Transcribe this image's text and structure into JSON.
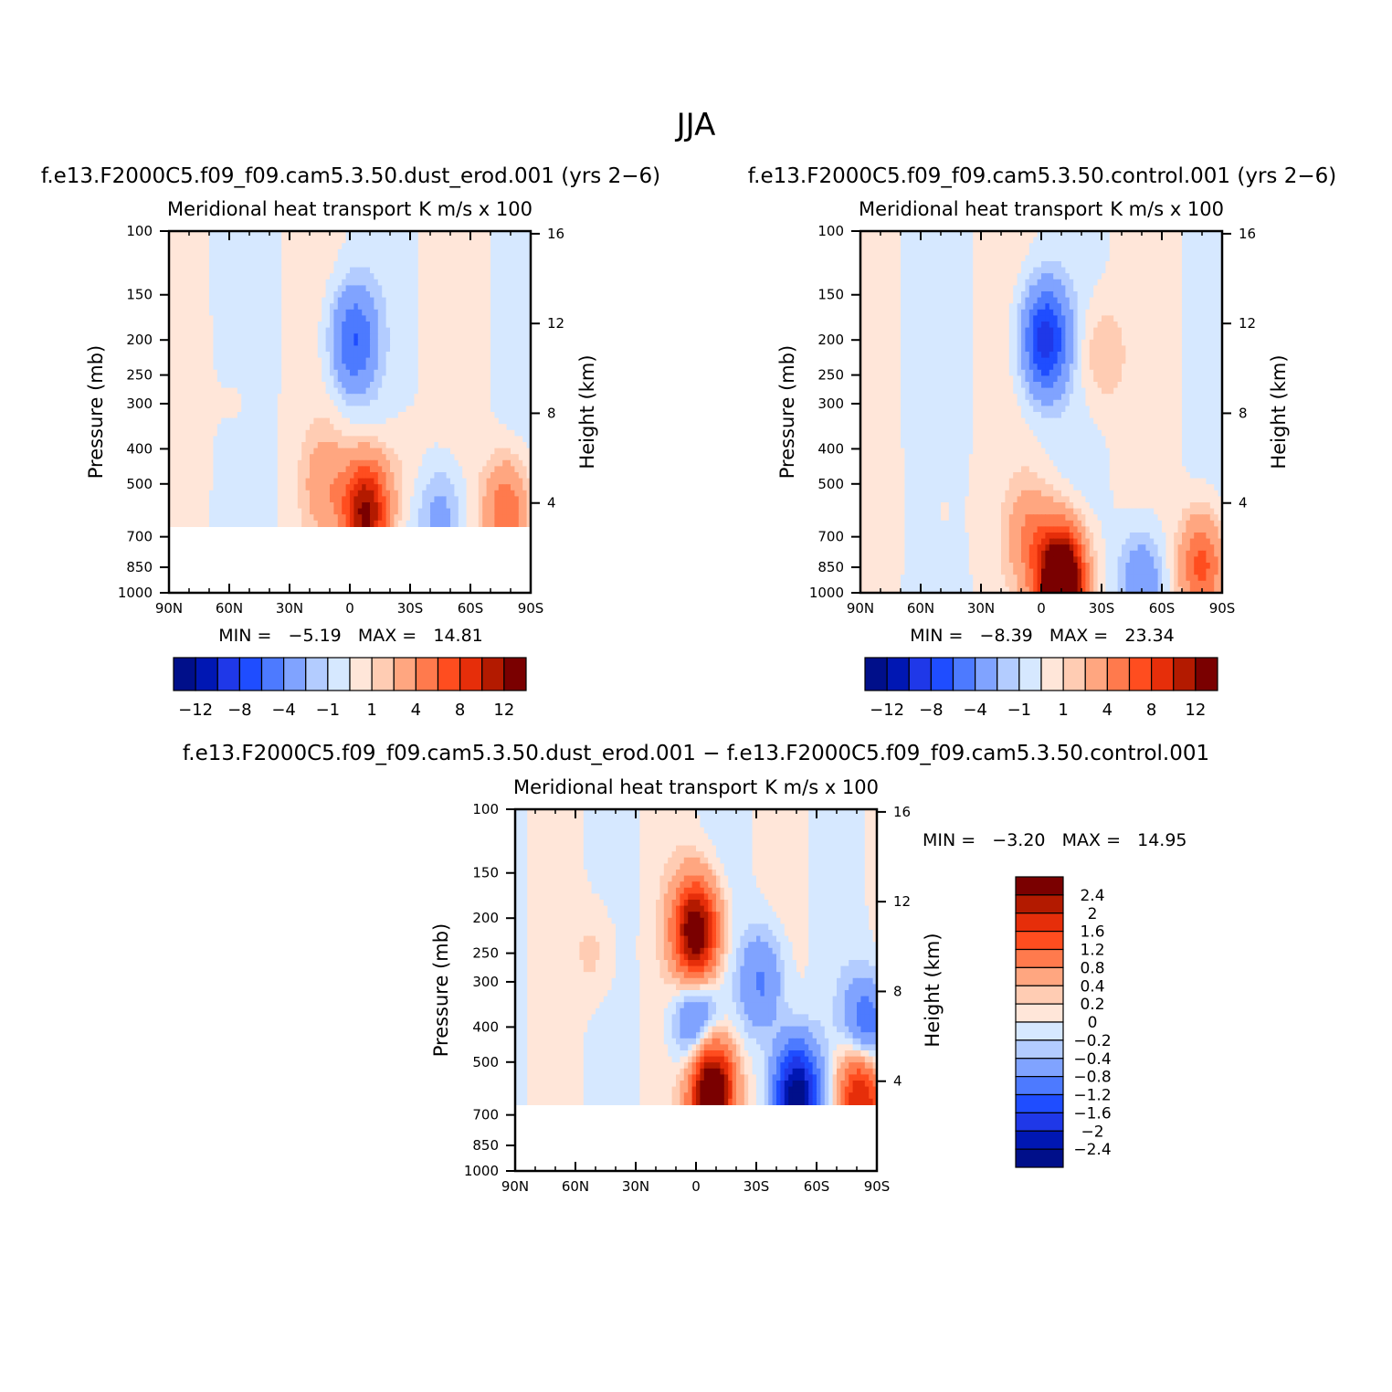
{
  "title": "JJA",
  "colors": {
    "levels_main": [
      "#000f8a",
      "#0017b3",
      "#1f38e8",
      "#1f4dff",
      "#4d7aff",
      "#80a3ff",
      "#b3ccff",
      "#d6e8ff",
      "#ffe6d9",
      "#ffccb3",
      "#ffa680",
      "#ff7a4d",
      "#ff4d1f",
      "#e62e0a",
      "#b31a00",
      "#7a0000"
    ],
    "levels_diff": [
      "#000f8a",
      "#0017b3",
      "#1f38e8",
      "#1f4dff",
      "#4d7aff",
      "#80a3ff",
      "#b3ccff",
      "#d6e8ff",
      "#ffe6d9",
      "#ffccb3",
      "#ffa680",
      "#ff7a4d",
      "#ff4d1f",
      "#e62e0a",
      "#b31a00",
      "#7a0000"
    ]
  },
  "chart_data": [
    {
      "id": "dust",
      "type": "contour",
      "title": "f.e13.F2000C5.f09_f09.cam5.3.50.dust_erod.001 (yrs 2−6)",
      "subtitle_left": "Meridional heat transport",
      "subtitle_right": "K m/s x 100",
      "ylabel": "Pressure (mb)",
      "ylabel_right": "Height (km)",
      "x_ticks": [
        "90N",
        "60N",
        "30N",
        "0",
        "30S",
        "60S",
        "90S"
      ],
      "y_ticks": [
        "100",
        "150",
        "200",
        "250",
        "300",
        "400",
        "500",
        "700",
        "850",
        "1000"
      ],
      "y_right_ticks": [
        "16",
        "12",
        "8",
        "4"
      ],
      "stats": "MIN =   −5.19   MAX =   14.81",
      "data_bottom_mb": 650,
      "features": [
        {
          "lat": -2,
          "p": 200,
          "v": -6
        },
        {
          "lat": -8,
          "p": 600,
          "v": 13
        },
        {
          "lat": 12,
          "p": 500,
          "v": 3
        },
        {
          "lat": -25,
          "p": 450,
          "v": 1
        },
        {
          "lat": -45,
          "p": 620,
          "v": -3
        },
        {
          "lat": -78,
          "p": 600,
          "v": 6
        },
        {
          "lat": 55,
          "p": 300,
          "v": 0.5
        }
      ],
      "colorbar": {
        "labels": [
          "−12",
          "−8",
          "−4",
          "−1",
          "1",
          "4",
          "8",
          "12"
        ]
      }
    },
    {
      "id": "control",
      "type": "contour",
      "title": "f.e13.F2000C5.f09_f09.cam5.3.50.control.001 (yrs 2−6)",
      "subtitle_left": "Meridional heat transport",
      "subtitle_right": "K m/s x 100",
      "ylabel": "Pressure (mb)",
      "ylabel_right": "Height (km)",
      "x_ticks": [
        "90N",
        "60N",
        "30N",
        "0",
        "30S",
        "60S",
        "90S"
      ],
      "y_ticks": [
        "100",
        "150",
        "200",
        "250",
        "300",
        "400",
        "500",
        "700",
        "850",
        "1000"
      ],
      "y_right_ticks": [
        "16",
        "12",
        "8",
        "4"
      ],
      "stats": "MIN =   −8.39   MAX =   23.34",
      "data_bottom_mb": 1000,
      "features": [
        {
          "lat": -2,
          "p": 200,
          "v": -9
        },
        {
          "lat": -10,
          "p": 950,
          "v": 22
        },
        {
          "lat": 5,
          "p": 700,
          "v": 4
        },
        {
          "lat": -30,
          "p": 220,
          "v": 2
        },
        {
          "lat": -50,
          "p": 930,
          "v": -4
        },
        {
          "lat": -80,
          "p": 850,
          "v": 7
        },
        {
          "lat": 50,
          "p": 600,
          "v": 0.5
        }
      ],
      "colorbar": {
        "labels": [
          "−12",
          "−8",
          "−4",
          "−1",
          "1",
          "4",
          "8",
          "12"
        ]
      }
    },
    {
      "id": "diff",
      "type": "contour",
      "title": "f.e13.F2000C5.f09_f09.cam5.3.50.dust_erod.001 − f.e13.F2000C5.f09_f09.cam5.3.50.control.001",
      "subtitle_left": "Meridional heat transport",
      "subtitle_right": "K m/s x 100",
      "ylabel": "Pressure (mb)",
      "ylabel_right": "Height (km)",
      "x_ticks": [
        "90N",
        "60N",
        "30N",
        "0",
        "30S",
        "60S",
        "90S"
      ],
      "y_ticks": [
        "100",
        "150",
        "200",
        "250",
        "300",
        "400",
        "500",
        "700",
        "850",
        "1000"
      ],
      "y_right_ticks": [
        "16",
        "12",
        "8",
        "4"
      ],
      "stats": "MIN =   −3.20   MAX =   14.95",
      "data_bottom_mb": 650,
      "features": [
        {
          "lat": 0,
          "p": 220,
          "v": 3
        },
        {
          "lat": -8,
          "p": 600,
          "v": 3.5
        },
        {
          "lat": 0,
          "p": 380,
          "v": -1.2
        },
        {
          "lat": -33,
          "p": 300,
          "v": -0.9
        },
        {
          "lat": -50,
          "p": 620,
          "v": -2.8
        },
        {
          "lat": -82,
          "p": 600,
          "v": 2.4
        },
        {
          "lat": -85,
          "p": 420,
          "v": -1.5
        },
        {
          "lat": 50,
          "p": 250,
          "v": 0.3
        }
      ],
      "colorbar": {
        "labels": [
          "2.4",
          "2",
          "1.6",
          "1.2",
          "0.8",
          "0.4",
          "0.2",
          "0",
          "−0.2",
          "−0.4",
          "−0.8",
          "−1.2",
          "−1.6",
          "−2",
          "−2.4"
        ]
      }
    }
  ]
}
